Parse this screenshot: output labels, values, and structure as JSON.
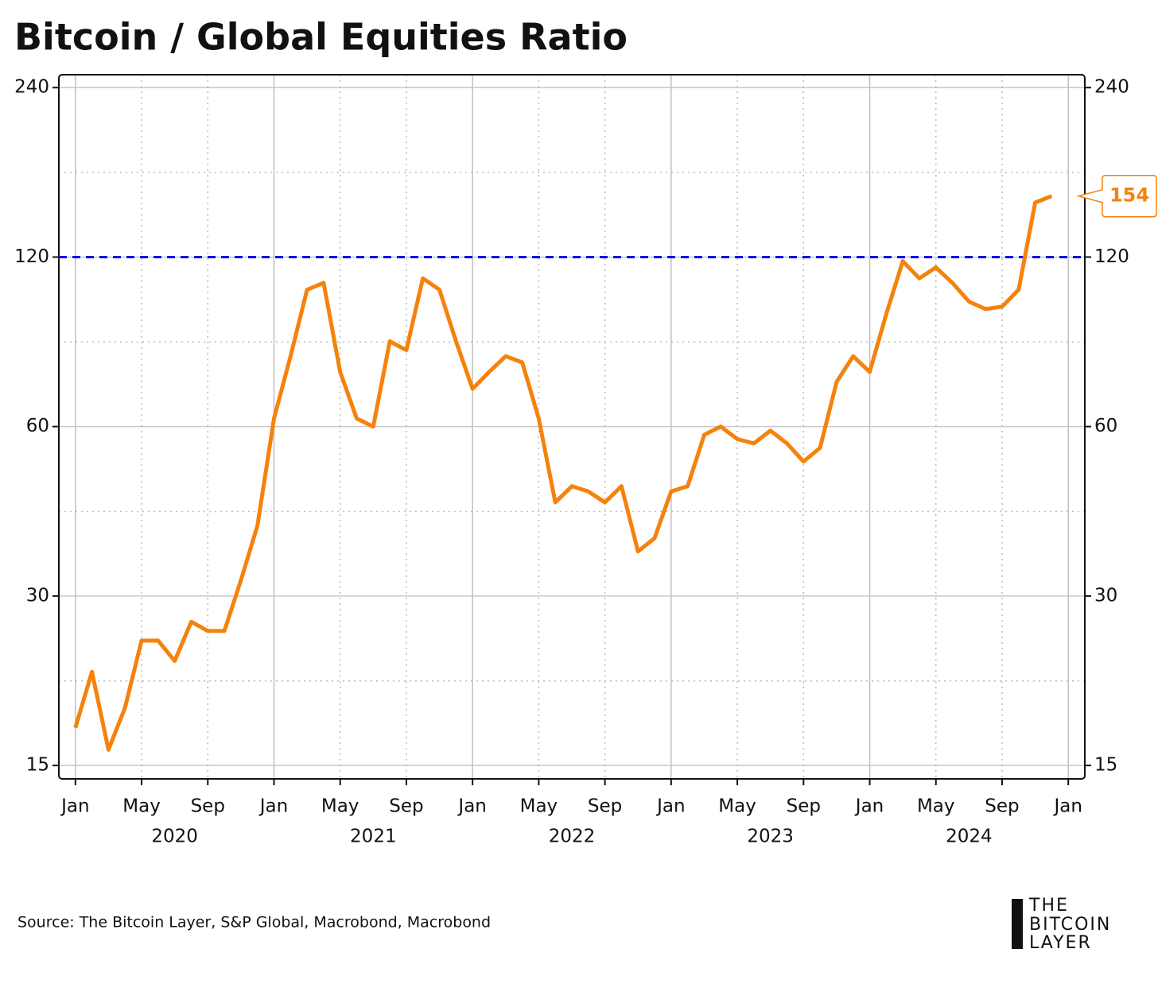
{
  "chart_data": {
    "type": "line",
    "title": "Bitcoin / Global Equities Ratio",
    "source": "Source: The Bitcoin Layer, S&P Global, Macrobond, Macrobond",
    "logo": [
      "THE",
      "BITCOIN",
      "LAYER"
    ],
    "log_scale": true,
    "grid": true,
    "x": [
      "2020-01",
      "2020-02",
      "2020-03",
      "2020-04",
      "2020-05",
      "2020-06",
      "2020-07",
      "2020-08",
      "2020-09",
      "2020-10",
      "2020-11",
      "2020-12",
      "2021-01",
      "2021-02",
      "2021-03",
      "2021-04",
      "2021-05",
      "2021-06",
      "2021-07",
      "2021-08",
      "2021-09",
      "2021-10",
      "2021-11",
      "2021-12",
      "2022-01",
      "2022-02",
      "2022-03",
      "2022-04",
      "2022-05",
      "2022-06",
      "2022-07",
      "2022-08",
      "2022-09",
      "2022-10",
      "2022-11",
      "2022-12",
      "2023-01",
      "2023-02",
      "2023-03",
      "2023-04",
      "2023-05",
      "2023-06",
      "2023-07",
      "2023-08",
      "2023-09",
      "2023-10",
      "2023-11",
      "2023-12",
      "2024-01",
      "2024-02",
      "2024-03",
      "2024-04",
      "2024-05",
      "2024-06",
      "2024-07",
      "2024-08",
      "2024-09",
      "2024-10",
      "2024-11",
      "2024-12"
    ],
    "series": [
      {
        "name": "Bitcoin / Global Equities",
        "color": "#f5820d",
        "values": [
          17.5,
          22,
          16,
          19,
          25,
          25,
          23,
          27,
          26,
          26,
          32,
          40,
          62,
          80,
          105,
          108,
          75,
          62,
          60,
          85,
          82,
          110,
          105,
          85,
          70,
          75,
          80,
          78,
          62,
          44,
          47,
          46,
          44,
          47,
          36,
          38,
          46,
          47,
          58,
          60,
          57,
          56,
          59,
          56,
          52,
          55,
          72,
          80,
          75,
          95,
          118,
          110,
          115,
          108,
          100,
          97,
          98,
          105,
          150,
          154
        ]
      }
    ],
    "xlim": [
      "2019-12",
      "2025-02"
    ],
    "xticks": [
      {
        "value": "2020-01",
        "label": "Jan"
      },
      {
        "value": "2020-05",
        "label": "May"
      },
      {
        "value": "2020-09",
        "label": "Sep"
      },
      {
        "value": "2021-01",
        "label": "Jan"
      },
      {
        "value": "2021-05",
        "label": "May"
      },
      {
        "value": "2021-09",
        "label": "Sep"
      },
      {
        "value": "2022-01",
        "label": "Jan"
      },
      {
        "value": "2022-05",
        "label": "May"
      },
      {
        "value": "2022-09",
        "label": "Sep"
      },
      {
        "value": "2023-01",
        "label": "Jan"
      },
      {
        "value": "2023-05",
        "label": "May"
      },
      {
        "value": "2023-09",
        "label": "Sep"
      },
      {
        "value": "2024-01",
        "label": "Jan"
      },
      {
        "value": "2024-05",
        "label": "May"
      },
      {
        "value": "2024-09",
        "label": "Sep"
      },
      {
        "value": "2025-01",
        "label": "Jan"
      }
    ],
    "year_labels": [
      {
        "value": "2020-07",
        "label": "2020"
      },
      {
        "value": "2021-07",
        "label": "2021"
      },
      {
        "value": "2022-07",
        "label": "2022"
      },
      {
        "value": "2023-07",
        "label": "2023"
      },
      {
        "value": "2024-07",
        "label": "2024"
      }
    ],
    "ylim": [
      14.2,
      253
    ],
    "yticks": [
      15,
      30,
      60,
      120,
      240
    ],
    "y2lim": [
      14.2,
      253
    ],
    "y2ticks": [
      15,
      30,
      60,
      120,
      240
    ],
    "yminor_ticks": [
      21.2,
      42.4,
      84.8,
      169.7
    ],
    "hlines": [
      {
        "value": 120,
        "color": "#0000ee"
      }
    ],
    "annotations": [
      {
        "x": "2024-12",
        "y": 154,
        "text": "154"
      }
    ]
  }
}
